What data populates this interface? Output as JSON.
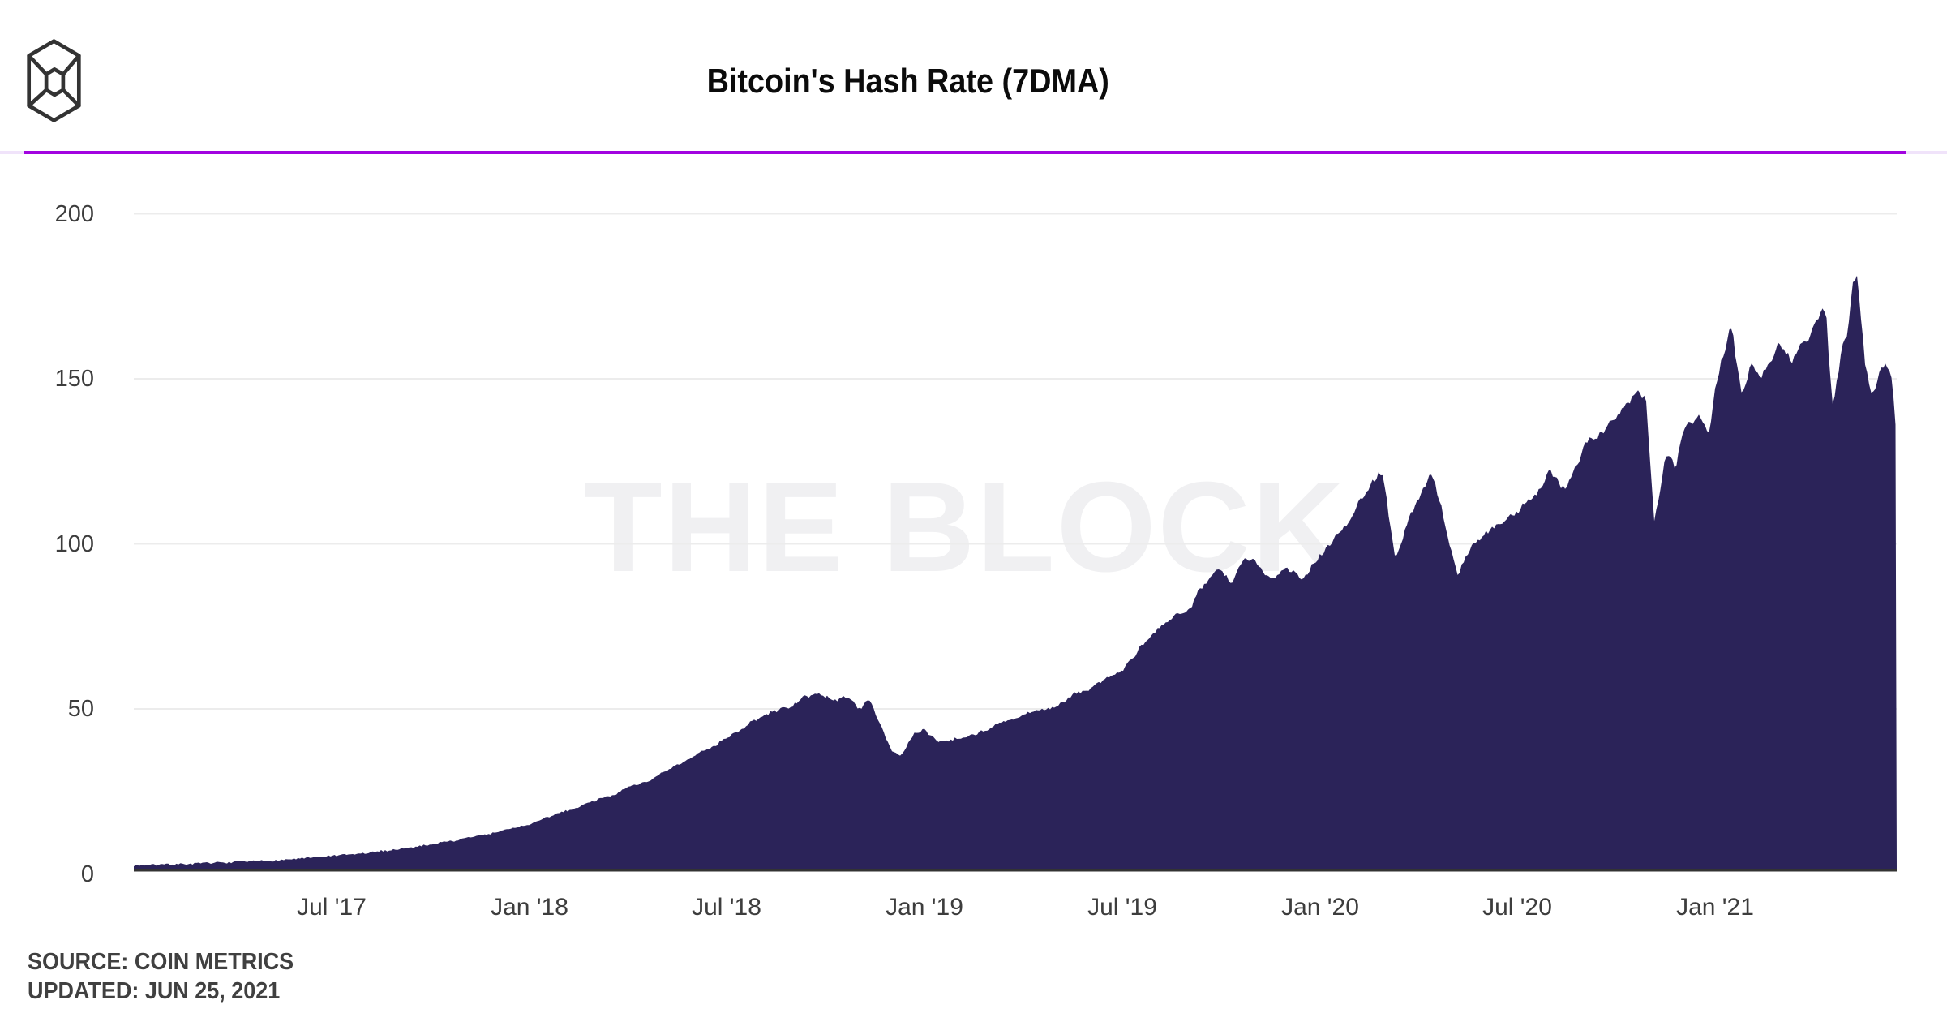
{
  "header": {
    "title": "Bitcoin's Hash Rate (7DMA)"
  },
  "branding": {
    "logo": "the-block-cube-logo",
    "watermark": "THE BLOCK"
  },
  "footer": {
    "source": "SOURCE: COIN METRICS",
    "updated": "UPDATED: JUN 25, 2021"
  },
  "colors": {
    "accent_rule": "#a203e0",
    "accent_rule_track": "#f0e3fa",
    "area_fill": "#2b2359",
    "grid_line": "#ececec",
    "axis_line": "#333333",
    "tick_text": "#3d3d3d",
    "watermark_text": "#f0f0f2"
  },
  "chart_data": {
    "type": "area",
    "title": "Bitcoin's Hash Rate (7DMA)",
    "xlabel": "",
    "ylabel": "",
    "unit_hint": "",
    "ylim": [
      0,
      200
    ],
    "grid": "horizontal-only",
    "legend": "none",
    "yticks": {
      "labels": [
        "200",
        "150",
        "100",
        "50",
        "0"
      ],
      "values": [
        200,
        150,
        100,
        50,
        0
      ]
    },
    "xticks": {
      "labels": [
        "Jul '17",
        "Jan '18",
        "Jul '18",
        "Jan '19",
        "Jul '19",
        "Jan '20",
        "Jul '20",
        "Jan '21"
      ],
      "month_offsets": [
        6,
        12,
        18,
        24,
        30,
        36,
        42,
        48
      ]
    },
    "x_axis_note": "x values are months elapsed since Jan 2017; series ends Jun 25, 2021",
    "series": [
      {
        "name": "Bitcoin hash rate 7DMA",
        "points": [
          [
            0,
            2.6
          ],
          [
            1,
            2.9
          ],
          [
            2,
            3.2
          ],
          [
            3,
            3.5
          ],
          [
            4,
            4.0
          ],
          [
            5,
            4.6
          ],
          [
            6,
            5.4
          ],
          [
            7,
            6.2
          ],
          [
            8,
            7.4
          ],
          [
            9,
            9.0
          ],
          [
            10,
            10.6
          ],
          [
            11,
            12.6
          ],
          [
            12,
            15.0
          ],
          [
            13,
            18.5
          ],
          [
            14,
            22.5
          ],
          [
            15,
            26.0
          ],
          [
            16,
            30.0
          ],
          [
            17,
            35.0
          ],
          [
            18,
            42.0
          ],
          [
            19,
            47.0
          ],
          [
            20,
            51.5
          ],
          [
            20.7,
            55.0
          ],
          [
            21.2,
            52.0
          ],
          [
            21.6,
            54.0
          ],
          [
            22.0,
            50.5
          ],
          [
            22.3,
            52.5
          ],
          [
            22.6,
            47.0
          ],
          [
            23.0,
            37.5
          ],
          [
            23.3,
            36.0
          ],
          [
            23.7,
            42.5
          ],
          [
            24,
            43.5
          ],
          [
            24.4,
            40.5
          ],
          [
            25,
            41.5
          ],
          [
            26,
            44.5
          ],
          [
            27,
            47.5
          ],
          [
            28,
            51.0
          ],
          [
            29,
            56.0
          ],
          [
            30,
            62.0
          ],
          [
            31,
            72.0
          ],
          [
            32,
            82.0
          ],
          [
            32.5,
            90.0
          ],
          [
            33,
            92.0
          ],
          [
            33.3,
            87.0
          ],
          [
            33.7,
            95.0
          ],
          [
            34,
            93.0
          ],
          [
            34.5,
            89.0
          ],
          [
            35,
            95.0
          ],
          [
            35.5,
            90.0
          ],
          [
            36,
            98.0
          ],
          [
            36.5,
            103.0
          ],
          [
            37,
            108.0
          ],
          [
            37.5,
            118.0
          ],
          [
            37.9,
            122.0
          ],
          [
            38.3,
            96.0
          ],
          [
            38.7,
            108.0
          ],
          [
            39,
            114.0
          ],
          [
            39.4,
            120.0
          ],
          [
            40.2,
            91.0
          ],
          [
            40.6,
            101.0
          ],
          [
            41,
            103.0
          ],
          [
            41.5,
            106.0
          ],
          [
            42,
            110.0
          ],
          [
            42.5,
            115.0
          ],
          [
            43,
            122.0
          ],
          [
            43.5,
            118.0
          ],
          [
            44,
            131.0
          ],
          [
            44.5,
            135.0
          ],
          [
            45,
            138.0
          ],
          [
            45.5,
            145.0
          ],
          [
            45.9,
            143.0
          ],
          [
            46.15,
            108.0
          ],
          [
            46.5,
            127.0
          ],
          [
            46.8,
            122.0
          ],
          [
            47,
            133.0
          ],
          [
            47.5,
            137.0
          ],
          [
            47.8,
            131.0
          ],
          [
            48,
            147.0
          ],
          [
            48.3,
            160.0
          ],
          [
            48.5,
            166.0
          ],
          [
            48.8,
            143.0
          ],
          [
            49.1,
            157.0
          ],
          [
            49.4,
            151.0
          ],
          [
            49.7,
            159.0
          ],
          [
            50,
            163.0
          ],
          [
            50.3,
            156.0
          ],
          [
            50.6,
            164.0
          ],
          [
            50.9,
            167.0
          ],
          [
            51.1,
            170.0
          ],
          [
            51.35,
            172.0
          ],
          [
            51.55,
            141.0
          ],
          [
            51.8,
            155.0
          ],
          [
            52.0,
            164.0
          ],
          [
            52.15,
            176.0
          ],
          [
            52.3,
            181.0
          ],
          [
            52.55,
            152.0
          ],
          [
            52.75,
            147.0
          ],
          [
            52.95,
            152.0
          ],
          [
            53.15,
            154.0
          ],
          [
            53.35,
            148.0
          ],
          [
            53.5,
            131.0
          ]
        ]
      }
    ]
  }
}
